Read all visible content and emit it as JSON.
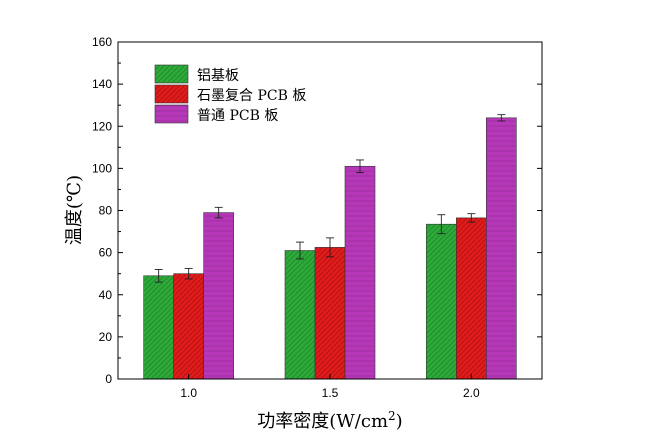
{
  "chart_data": {
    "type": "bar",
    "title": "",
    "xlabel": "功率密度(W/cm²)",
    "xlabel_base": "功率密度(W/cm",
    "xlabel_sup": "2",
    "xlabel_close": ")",
    "ylabel": "温度(℃)",
    "ylim": [
      0,
      160
    ],
    "yticks": [
      0,
      20,
      40,
      60,
      80,
      100,
      120,
      140,
      160
    ],
    "categories": [
      "1.0",
      "1.5",
      "2.0"
    ],
    "grid": false,
    "legend_position": "top-left",
    "series": [
      {
        "name": "铝基板",
        "color": "#2eaa3a",
        "values": [
          49,
          61,
          73.5
        ],
        "errors": [
          3,
          4,
          4.5
        ]
      },
      {
        "name": "石墨复合 PCB 板",
        "color": "#e01b1b",
        "values": [
          50,
          62.5,
          76.5
        ],
        "errors": [
          2.5,
          4.5,
          2
        ]
      },
      {
        "name": "普通 PCB 板",
        "color": "#b638b8",
        "values": [
          79,
          101,
          124
        ],
        "errors": [
          2.5,
          3,
          1.5
        ]
      }
    ]
  }
}
